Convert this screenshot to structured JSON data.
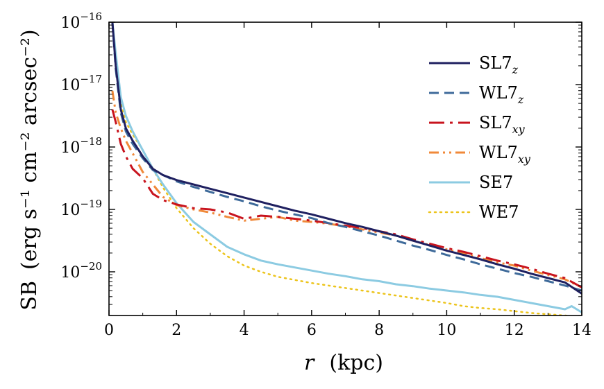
{
  "chart_data": {
    "type": "line",
    "xlabel_var": "r",
    "xlabel_unit": "(kpc)",
    "ylabel_prefix": "SB",
    "ylabel_units": "(erg s⁻¹ cm⁻² arcsec⁻²)",
    "xlim": [
      0,
      14
    ],
    "ylim_log10": [
      -20.7,
      -16
    ],
    "y_scale": "log",
    "x_ticks": [
      0,
      2,
      4,
      6,
      8,
      10,
      12,
      14
    ],
    "y_tick_exponents": [
      -16,
      -17,
      -18,
      -19,
      -20
    ],
    "y_tick_base": "10",
    "legend_position": "top-right",
    "series": [
      {
        "name": "SL7",
        "sub": "z",
        "color": "#1f2060",
        "dash": "solid",
        "x": [
          0.1,
          0.2,
          0.35,
          0.5,
          0.7,
          1.0,
          1.3,
          1.6,
          2.0,
          2.5,
          3.0,
          3.5,
          4.0,
          4.5,
          5.0,
          5.5,
          6.0,
          6.5,
          7.0,
          7.5,
          8.0,
          8.5,
          9.0,
          9.5,
          10.0,
          10.5,
          11.0,
          11.5,
          12.0,
          12.5,
          13.0,
          13.5,
          14.0
        ],
        "y": [
          -16.0,
          -16.7,
          -17.4,
          -17.7,
          -17.9,
          -18.15,
          -18.35,
          -18.45,
          -18.53,
          -18.6,
          -18.67,
          -18.74,
          -18.81,
          -18.88,
          -18.95,
          -19.02,
          -19.08,
          -19.15,
          -19.22,
          -19.28,
          -19.35,
          -19.42,
          -19.5,
          -19.58,
          -19.66,
          -19.73,
          -19.8,
          -19.88,
          -19.95,
          -20.03,
          -20.1,
          -20.17,
          -20.35
        ]
      },
      {
        "name": "WL7",
        "sub": "z",
        "color": "#3e6a9a",
        "dash": "dashed",
        "x": [
          0.1,
          0.2,
          0.35,
          0.5,
          0.7,
          1.0,
          1.3,
          1.6,
          2.0,
          2.5,
          3.0,
          3.5,
          4.0,
          4.5,
          5.0,
          5.5,
          6.0,
          6.5,
          7.0,
          7.5,
          8.0,
          8.5,
          9.0,
          9.5,
          10.0,
          10.5,
          11.0,
          11.5,
          12.0,
          12.5,
          13.0,
          13.5,
          14.0
        ],
        "y": [
          -16.0,
          -16.75,
          -17.45,
          -17.75,
          -17.95,
          -18.18,
          -18.37,
          -18.45,
          -18.55,
          -18.64,
          -18.72,
          -18.8,
          -18.87,
          -18.95,
          -19.02,
          -19.08,
          -19.14,
          -19.22,
          -19.28,
          -19.35,
          -19.42,
          -19.5,
          -19.58,
          -19.65,
          -19.73,
          -19.8,
          -19.88,
          -19.95,
          -20.02,
          -20.08,
          -20.15,
          -20.22,
          -20.3
        ]
      },
      {
        "name": "SL7",
        "sub": "xy",
        "color": "#c8141e",
        "dash": "dashdot",
        "x": [
          0.1,
          0.2,
          0.35,
          0.5,
          0.7,
          1.0,
          1.3,
          1.6,
          2.0,
          2.5,
          3.0,
          3.5,
          4.0,
          4.5,
          5.0,
          5.5,
          6.0,
          6.5,
          7.0,
          7.5,
          8.0,
          8.5,
          9.0,
          9.5,
          10.0,
          10.5,
          11.0,
          11.5,
          12.0,
          12.5,
          13.0,
          13.5,
          14.0
        ],
        "y": [
          -17.4,
          -17.6,
          -17.95,
          -18.15,
          -18.35,
          -18.5,
          -18.75,
          -18.85,
          -18.92,
          -18.98,
          -19.0,
          -19.05,
          -19.15,
          -19.1,
          -19.12,
          -19.15,
          -19.18,
          -19.22,
          -19.26,
          -19.3,
          -19.35,
          -19.4,
          -19.48,
          -19.55,
          -19.62,
          -19.68,
          -19.75,
          -19.82,
          -19.88,
          -19.95,
          -20.03,
          -20.1,
          -20.25
        ]
      },
      {
        "name": "WL7",
        "sub": "xy",
        "color": "#f0893a",
        "dash": "dashdotdot",
        "x": [
          0.1,
          0.2,
          0.35,
          0.5,
          0.7,
          1.0,
          1.3,
          1.6,
          2.0,
          2.5,
          3.0,
          3.5,
          4.0,
          4.5,
          5.0,
          5.5,
          6.0,
          6.5,
          7.0,
          7.5,
          8.0,
          8.5,
          9.0,
          9.5,
          10.0,
          10.5,
          11.0,
          11.5,
          12.0,
          12.5,
          13.0,
          13.5,
          14.0
        ],
        "y": [
          -17.1,
          -17.45,
          -17.7,
          -17.9,
          -18.1,
          -18.4,
          -18.6,
          -18.8,
          -18.93,
          -19.0,
          -19.05,
          -19.12,
          -19.18,
          -19.15,
          -19.12,
          -19.18,
          -19.2,
          -19.23,
          -19.27,
          -19.32,
          -19.37,
          -19.42,
          -19.5,
          -19.57,
          -19.64,
          -19.7,
          -19.78,
          -19.85,
          -19.9,
          -19.98,
          -20.05,
          -20.12,
          -20.25
        ]
      },
      {
        "name": "SE7",
        "sub": "",
        "color": "#8ccbe2",
        "dash": "solid",
        "x": [
          0.1,
          0.2,
          0.35,
          0.5,
          0.7,
          1.0,
          1.3,
          1.6,
          2.0,
          2.5,
          3.0,
          3.5,
          4.0,
          4.5,
          5.0,
          5.5,
          6.0,
          6.5,
          7.0,
          7.5,
          8.0,
          8.5,
          9.0,
          9.5,
          10.0,
          10.5,
          11.0,
          11.5,
          12.0,
          12.5,
          13.0,
          13.5,
          13.7,
          14.0
        ],
        "y": [
          -16.0,
          -16.5,
          -17.2,
          -17.5,
          -17.75,
          -18.05,
          -18.35,
          -18.6,
          -18.9,
          -19.2,
          -19.4,
          -19.6,
          -19.72,
          -19.82,
          -19.88,
          -19.93,
          -19.98,
          -20.03,
          -20.07,
          -20.12,
          -20.15,
          -20.2,
          -20.23,
          -20.27,
          -20.3,
          -20.33,
          -20.37,
          -20.4,
          -20.45,
          -20.5,
          -20.55,
          -20.6,
          -20.55,
          -20.65
        ]
      },
      {
        "name": "WE7",
        "sub": "",
        "color": "#ecc41c",
        "dash": "dotted",
        "x": [
          0.1,
          0.2,
          0.35,
          0.5,
          0.7,
          1.0,
          1.3,
          1.6,
          2.0,
          2.5,
          3.0,
          3.5,
          4.0,
          4.5,
          5.0,
          5.5,
          6.0,
          6.5,
          7.0,
          7.5,
          8.0,
          8.5,
          9.0,
          9.5,
          10.0,
          10.5,
          11.0,
          11.5,
          12.0,
          12.5,
          13.0,
          13.5,
          14.0
        ],
        "y": [
          -16.0,
          -16.6,
          -17.3,
          -17.6,
          -17.8,
          -18.05,
          -18.35,
          -18.65,
          -18.98,
          -19.3,
          -19.55,
          -19.75,
          -19.9,
          -20.0,
          -20.08,
          -20.13,
          -20.18,
          -20.22,
          -20.26,
          -20.3,
          -20.34,
          -20.38,
          -20.42,
          -20.46,
          -20.5,
          -20.55,
          -20.58,
          -20.6,
          -20.63,
          -20.66,
          -20.68,
          -20.7,
          -20.72
        ]
      }
    ]
  }
}
